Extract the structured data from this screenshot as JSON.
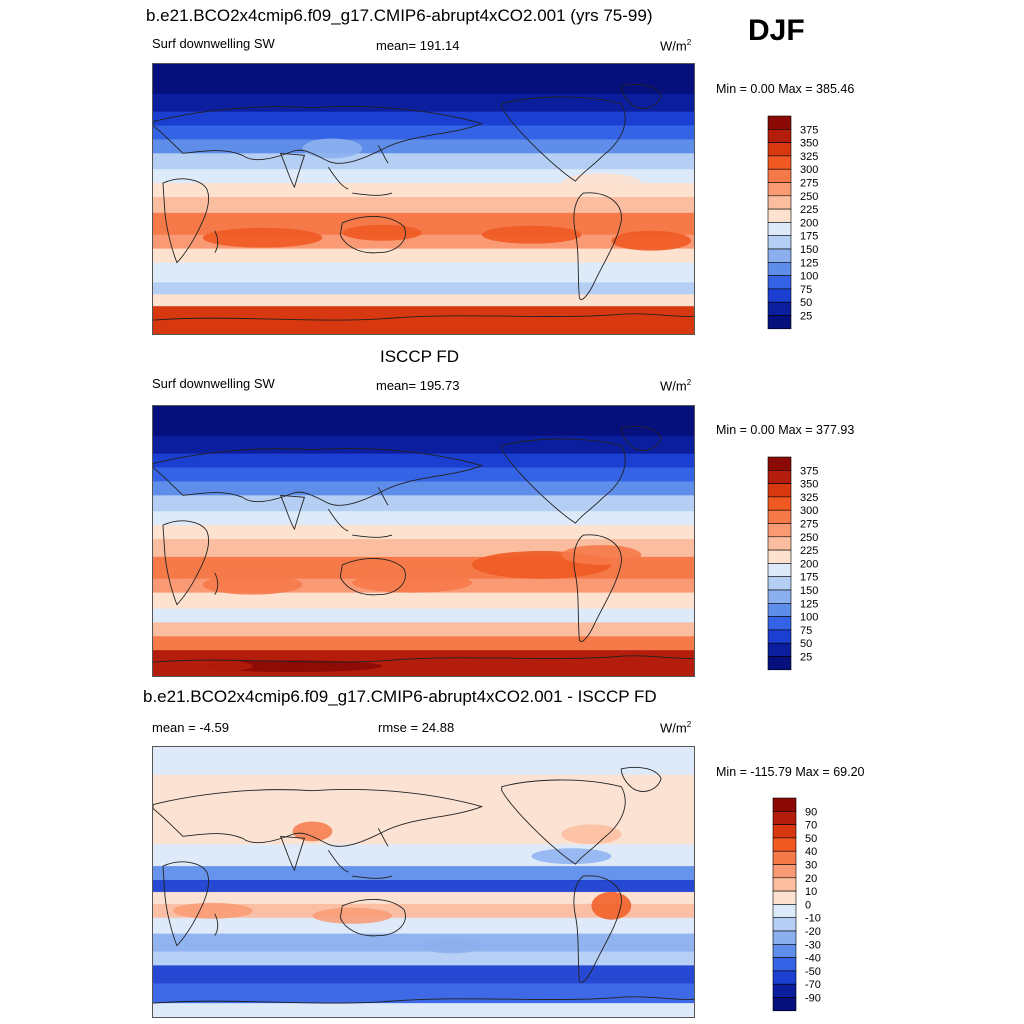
{
  "season": "DJF",
  "panels": [
    {
      "title": "b.e21.BCO2x4cmip6.f09_g17.CMIP6-abrupt4xCO2.001 (yrs 75-99)",
      "left_label": "Surf downwelling SW",
      "center_label": "mean= 191.14",
      "units": "W/m",
      "units_sup": "2",
      "minmax": "Min =    0.00 Max = 385.46",
      "colorbar_labels": [
        "375",
        "350",
        "325",
        "300",
        "275",
        "250",
        "225",
        "200",
        "175",
        "150",
        "125",
        "100",
        "75",
        "50",
        "25"
      ],
      "field_type": "absolute"
    },
    {
      "title": "ISCCP FD",
      "left_label": "Surf downwelling SW",
      "center_label": "mean= 195.73",
      "units": "W/m",
      "units_sup": "2",
      "minmax": "Min =    0.00 Max = 377.93",
      "colorbar_labels": [
        "375",
        "350",
        "325",
        "300",
        "275",
        "250",
        "225",
        "200",
        "175",
        "150",
        "125",
        "100",
        "75",
        "50",
        "25"
      ],
      "field_type": "absolute"
    },
    {
      "title": "b.e21.BCO2x4cmip6.f09_g17.CMIP6-abrupt4xCO2.001 - ISCCP FD",
      "left_label": "mean =  -4.59",
      "center_label": "rmse =  24.88",
      "units": "W/m",
      "units_sup": "2",
      "minmax": "Min = -115.79 Max =  69.20",
      "colorbar_labels": [
        "90",
        "70",
        "50",
        "40",
        "30",
        "20",
        "10",
        "0",
        "-10",
        "-20",
        "-30",
        "-40",
        "-50",
        "-70",
        "-90"
      ],
      "field_type": "difference"
    }
  ],
  "colors": {
    "absolute": [
      "#8b0a05",
      "#b41d0c",
      "#d8380f",
      "#f05a22",
      "#f6794a",
      "#f99a74",
      "#fbbd9f",
      "#fde2d0",
      "#ddeafa",
      "#b5cff4",
      "#8cb0ee",
      "#5f8eea",
      "#3563e6",
      "#1b3fd0",
      "#0a1e9e",
      "#05107c"
    ],
    "difference": [
      "#8b0a05",
      "#b41d0c",
      "#d8380f",
      "#f05a22",
      "#f6794a",
      "#f99a74",
      "#fbbd9f",
      "#fde2d0",
      "#ddeafa",
      "#b5cff4",
      "#8cb0ee",
      "#5f8eea",
      "#3563e6",
      "#1b3fd0",
      "#0a1e9e",
      "#05107c"
    ]
  }
}
